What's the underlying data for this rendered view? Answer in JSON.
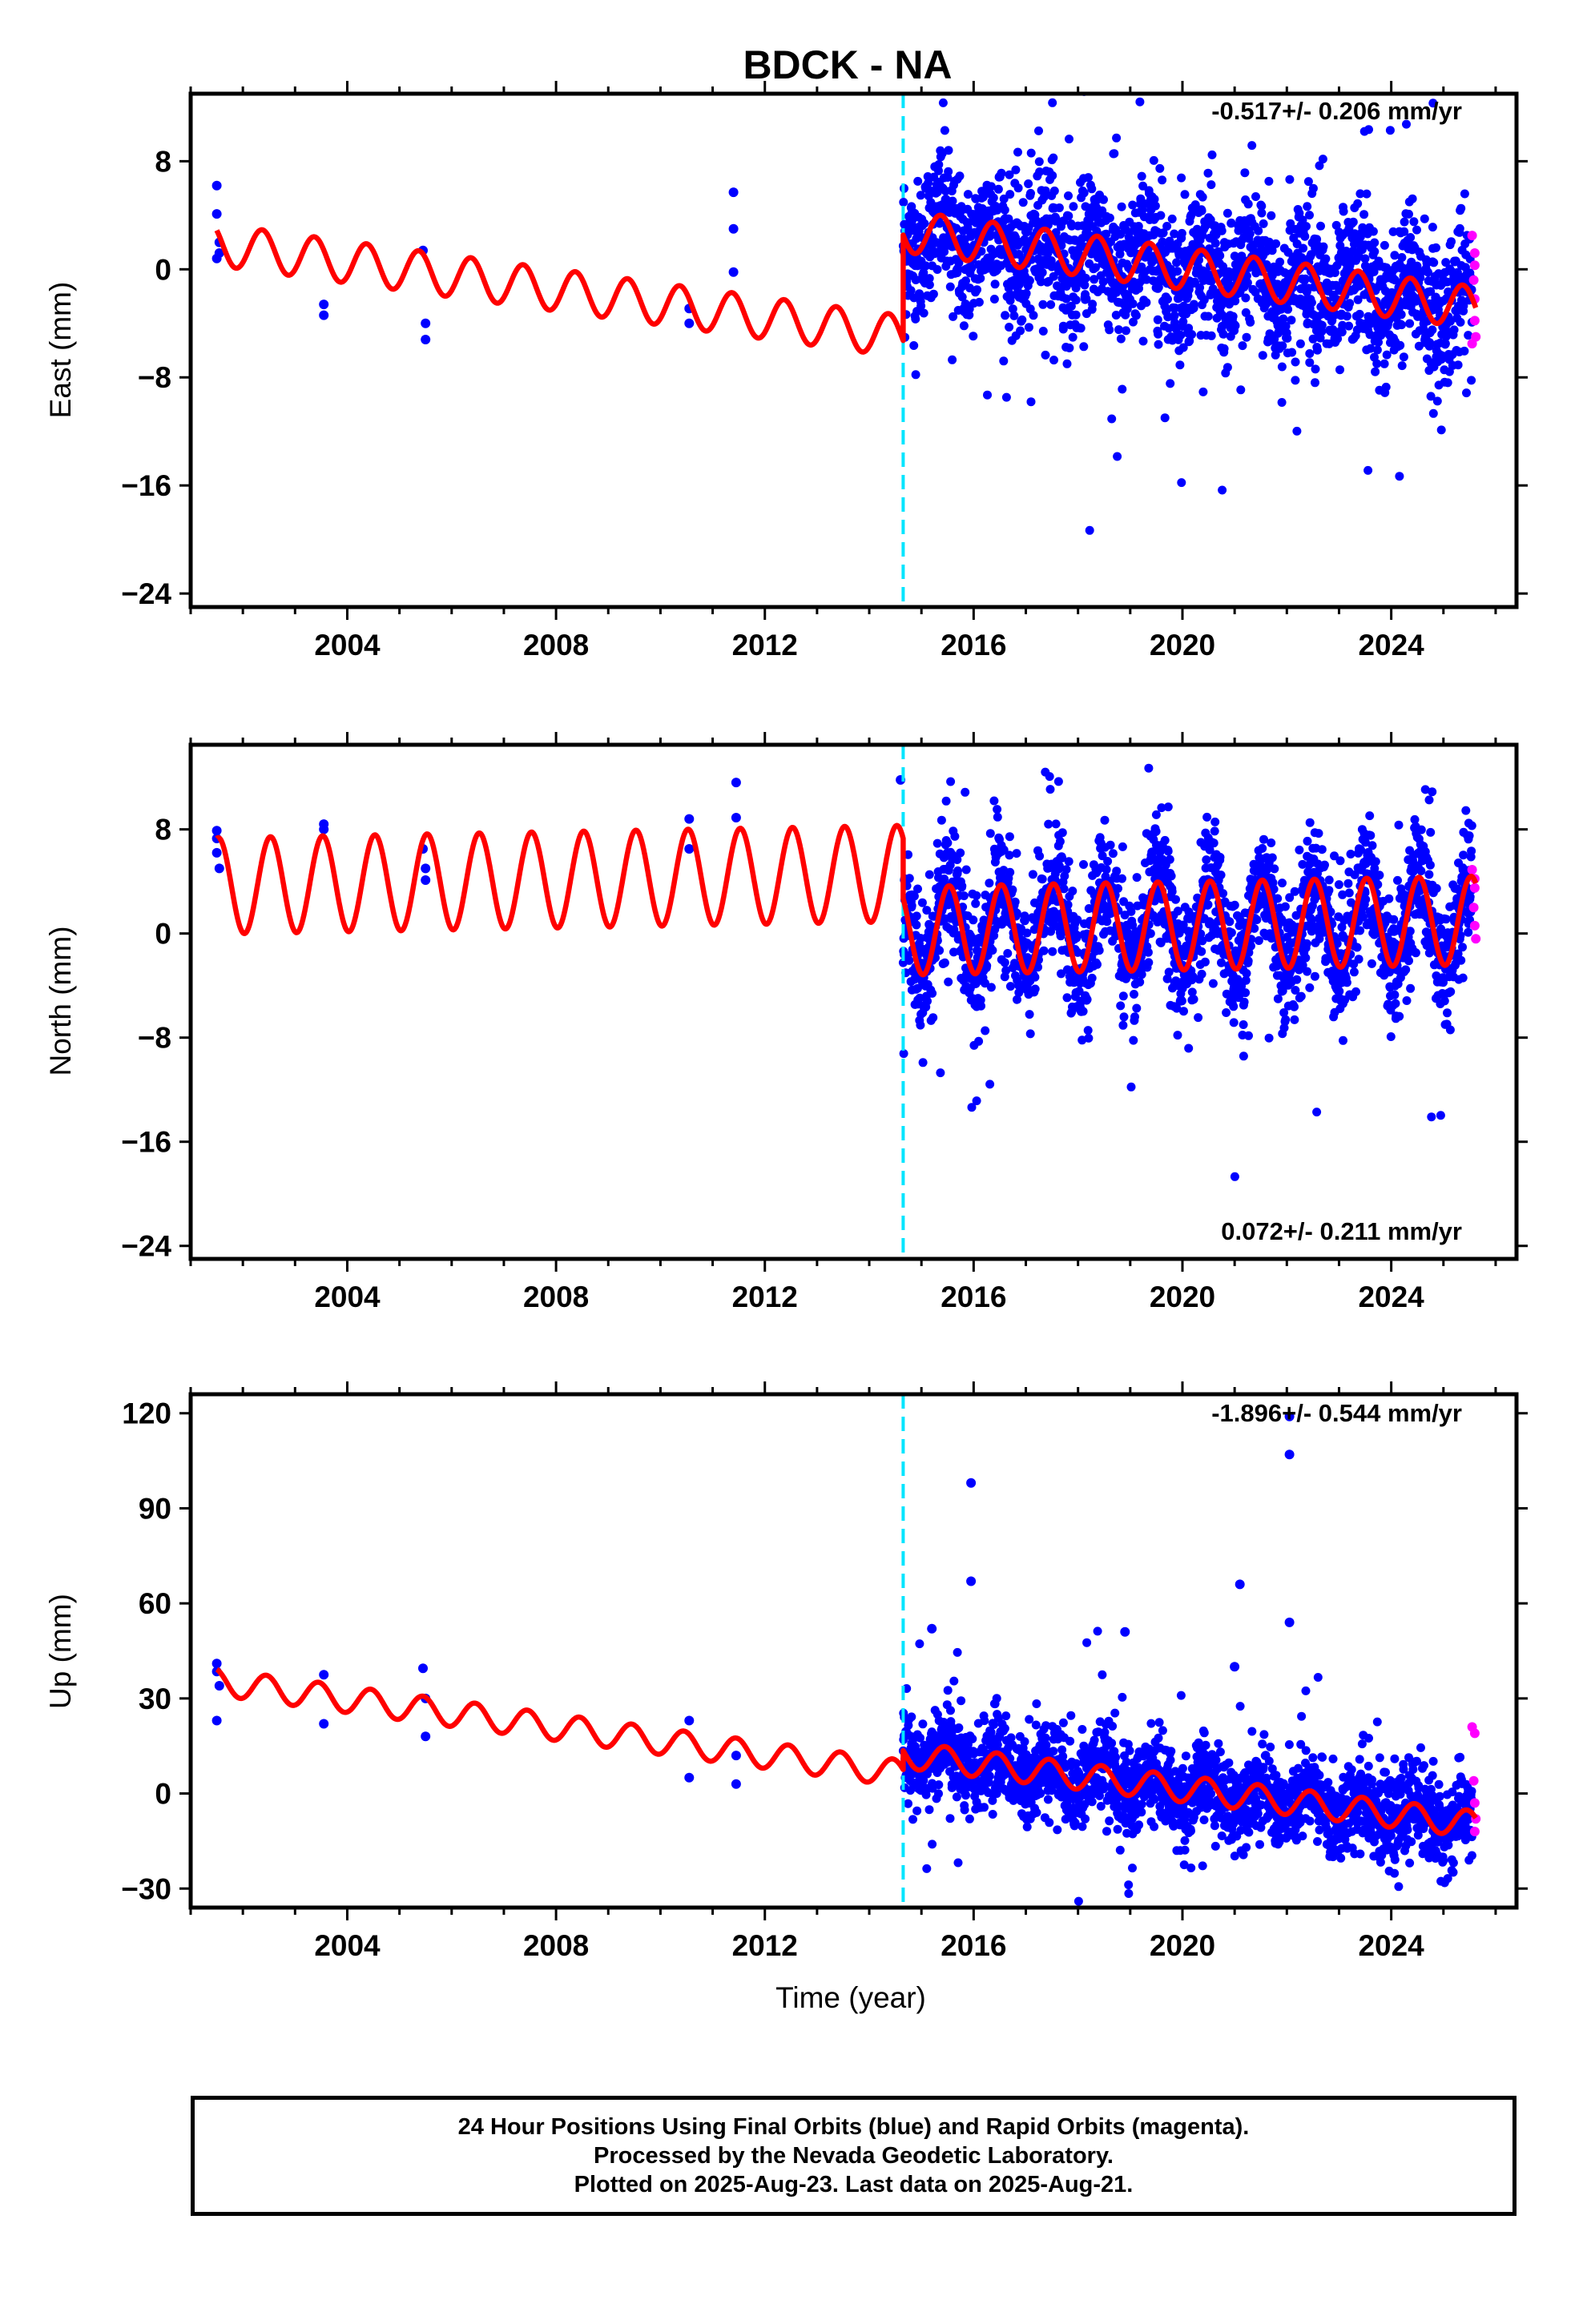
{
  "title": "BDCK - NA",
  "xlabel": "Time (year)",
  "x_ticks": [
    "2004",
    "2008",
    "2012",
    "2016",
    "2020",
    "2024"
  ],
  "caption": {
    "line1": "24 Hour Positions Using Final Orbits (blue) and Rapid Orbits (magenta).",
    "line2": "Processed by the Nevada Geodetic Laboratory.",
    "line3": "Plotted on 2025-Aug-23. Last data on 2025-Aug-21."
  },
  "colors": {
    "final_orbits": "#0000ff",
    "rapid_orbits": "#ff00ff",
    "model": "#ff0000",
    "break_line": "#00e5ff",
    "frame": "#000000"
  },
  "chart_data": [
    {
      "type": "scatter",
      "panel": "East",
      "ylabel": "East (mm)",
      "y_ticks": [
        8,
        0,
        -8,
        -16,
        -24
      ],
      "xlim": [
        2001.0,
        2026.4
      ],
      "ylim": [
        -25,
        13
      ],
      "rate_label": "-0.517+/- 0.206 mm/yr",
      "break_epoch": 2014.65,
      "series": [
        {
          "name": "Final Orbits (blue)",
          "points": [
            [
              2001.5,
              6.2
            ],
            [
              2001.5,
              4.1
            ],
            [
              2001.55,
              2.0
            ],
            [
              2001.5,
              0.8
            ],
            [
              2001.55,
              1.2
            ],
            [
              2003.55,
              -2.6
            ],
            [
              2003.55,
              -3.4
            ],
            [
              2005.45,
              1.4
            ],
            [
              2005.5,
              -4.0
            ],
            [
              2005.5,
              -5.2
            ],
            [
              2010.55,
              -2.9
            ],
            [
              2010.55,
              -4.0
            ],
            [
              2011.4,
              5.7
            ],
            [
              2011.4,
              3.0
            ],
            [
              2011.4,
              -0.2
            ]
          ]
        },
        {
          "name": "Rapid Orbits (magenta)",
          "points": [
            [
              2025.55,
              2.5
            ],
            [
              2025.6,
              1.2
            ],
            [
              2025.58,
              -0.8
            ],
            [
              2025.6,
              -2.2
            ],
            [
              2025.6,
              -3.8
            ],
            [
              2025.62,
              -5.0
            ],
            [
              2025.55,
              -5.5
            ],
            [
              2025.6,
              0.3
            ]
          ]
        },
        {
          "name": "Model",
          "segments": [
            {
              "start": 2001.5,
              "end": 2014.65,
              "offset_at_2000": 2.6,
              "rate": -0.517,
              "annual_amp": 1.55,
              "phase_year": 0.12
            },
            {
              "start": 2014.65,
              "end": 2025.62,
              "offset_at_2000": 10.4,
              "rate": -0.517,
              "annual_amp": 1.55,
              "phase_year": 0.12
            }
          ]
        }
      ],
      "dense_cloud": {
        "start": 2014.65,
        "end": 2025.55,
        "spread": 2.6
      }
    },
    {
      "type": "scatter",
      "panel": "North",
      "ylabel": "North (mm)",
      "y_ticks": [
        8,
        0,
        -8,
        -16,
        -24
      ],
      "xlim": [
        2001.0,
        2026.4
      ],
      "ylim": [
        -25,
        14.5
      ],
      "rate_label": "0.072+/- 0.211 mm/yr",
      "break_epoch": 2014.65,
      "series": [
        {
          "name": "Final Orbits (blue)",
          "points": [
            [
              2001.5,
              7.9
            ],
            [
              2001.5,
              7.3
            ],
            [
              2001.55,
              5.0
            ],
            [
              2001.5,
              6.2
            ],
            [
              2003.55,
              8.4
            ],
            [
              2003.55,
              8.0
            ],
            [
              2005.45,
              6.5
            ],
            [
              2005.5,
              5.0
            ],
            [
              2005.5,
              4.1
            ],
            [
              2010.55,
              8.8
            ],
            [
              2010.55,
              6.5
            ],
            [
              2011.45,
              11.6
            ],
            [
              2011.45,
              8.9
            ],
            [
              2014.6,
              11.8
            ]
          ]
        },
        {
          "name": "Rapid Orbits (magenta)",
          "points": [
            [
              2025.55,
              4.9
            ],
            [
              2025.6,
              3.5
            ],
            [
              2025.58,
              2.0
            ],
            [
              2025.6,
              0.6
            ],
            [
              2025.62,
              -0.4
            ],
            [
              2025.6,
              4.2
            ]
          ]
        },
        {
          "name": "Model",
          "segments": [
            {
              "start": 2001.5,
              "end": 2014.65,
              "offset_at_2000": 3.55,
              "rate": 0.072,
              "annual_amp": 3.7,
              "phase_year": 0.28
            },
            {
              "start": 2014.65,
              "end": 2025.62,
              "offset_at_2000": -0.85,
              "rate": 0.072,
              "annual_amp": 3.4,
              "phase_year": 0.28
            }
          ]
        }
      ],
      "dense_cloud": {
        "start": 2014.65,
        "end": 2025.55,
        "spread": 2.3
      }
    },
    {
      "type": "scatter",
      "panel": "Up",
      "ylabel": "Up (mm)",
      "y_ticks": [
        120,
        90,
        60,
        30,
        0,
        -30
      ],
      "xlim": [
        2001.0,
        2026.4
      ],
      "ylim": [
        -36,
        126
      ],
      "rate_label": "-1.896+/- 0.544 mm/yr",
      "break_epoch": 2014.65,
      "series": [
        {
          "name": "Final Orbits (blue)",
          "points": [
            [
              2001.5,
              41.0
            ],
            [
              2001.5,
              38.5
            ],
            [
              2001.55,
              34.0
            ],
            [
              2001.5,
              23.0
            ],
            [
              2003.55,
              37.5
            ],
            [
              2003.55,
              22.0
            ],
            [
              2005.45,
              39.5
            ],
            [
              2005.5,
              30.0
            ],
            [
              2005.5,
              18.0
            ],
            [
              2010.55,
              23.0
            ],
            [
              2010.55,
              5.0
            ],
            [
              2011.45,
              12.0
            ],
            [
              2011.45,
              3.0
            ],
            [
              2015.95,
              98.0
            ],
            [
              2015.95,
              67.0
            ],
            [
              2018.9,
              51.0
            ],
            [
              2021.1,
              66.0
            ],
            [
              2022.05,
              119.0
            ],
            [
              2022.05,
              107.0
            ],
            [
              2022.05,
              54.0
            ],
            [
              2021.0,
              40.0
            ],
            [
              2015.2,
              52.0
            ]
          ]
        },
        {
          "name": "Rapid Orbits (magenta)",
          "points": [
            [
              2025.55,
              21.0
            ],
            [
              2025.6,
              19.0
            ],
            [
              2025.58,
              4.0
            ],
            [
              2025.6,
              -3.0
            ],
            [
              2025.62,
              -8.0
            ],
            [
              2025.6,
              -12.0
            ]
          ]
        },
        {
          "name": "Model",
          "segments": [
            {
              "start": 2001.5,
              "end": 2014.65,
              "offset_at_2000": 38.5,
              "rate": -2.2,
              "annual_amp": 4.2,
              "phase_year": 0.2
            },
            {
              "start": 2014.65,
              "end": 2025.62,
              "offset_at_2000": 41.5,
              "rate": -2.0,
              "annual_amp": 4.2,
              "phase_year": 0.2
            }
          ]
        }
      ],
      "dense_cloud": {
        "start": 2014.65,
        "end": 2025.55,
        "spread": 6.5
      }
    }
  ]
}
